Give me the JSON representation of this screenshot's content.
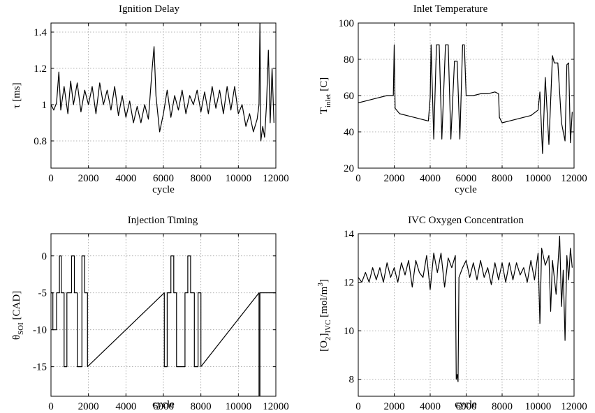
{
  "chart_data": [
    {
      "type": "line",
      "title": "Ignition Delay",
      "xlabel": "cycle",
      "ylabel": "τ [ms]",
      "xlim": [
        0,
        12000
      ],
      "ylim": [
        0.65,
        1.45
      ],
      "xticks": [
        0,
        2000,
        4000,
        6000,
        8000,
        10000,
        12000
      ],
      "yticks": [
        0.8,
        1,
        1.2,
        1.4
      ],
      "grid": true,
      "series": [
        {
          "color": "#000000",
          "x": [
            0,
            150,
            300,
            420,
            520,
            700,
            900,
            1050,
            1200,
            1400,
            1600,
            1800,
            2000,
            2200,
            2400,
            2600,
            2800,
            3000,
            3200,
            3400,
            3600,
            3800,
            4000,
            4200,
            4400,
            4600,
            4800,
            5000,
            5200,
            5400,
            5500,
            5600,
            5800,
            6000,
            6200,
            6400,
            6600,
            6800,
            7000,
            7200,
            7400,
            7600,
            7800,
            8000,
            8200,
            8400,
            8600,
            8800,
            9000,
            9200,
            9400,
            9600,
            9800,
            10000,
            10200,
            10400,
            10600,
            10800,
            11000,
            11100,
            11150,
            11200,
            11300,
            11400,
            11500,
            11600,
            11700,
            11800,
            11900
          ],
          "values": [
            1.0,
            0.97,
            1.01,
            1.18,
            0.97,
            1.1,
            0.95,
            1.13,
            1.0,
            1.12,
            0.96,
            1.08,
            1.0,
            1.1,
            0.95,
            1.12,
            1.0,
            1.08,
            0.97,
            1.1,
            0.94,
            1.05,
            0.93,
            1.02,
            0.9,
            0.99,
            0.9,
            1.0,
            0.92,
            1.2,
            1.32,
            1.05,
            0.85,
            0.95,
            1.08,
            0.93,
            1.05,
            0.97,
            1.08,
            0.95,
            1.05,
            1.0,
            1.08,
            0.96,
            1.07,
            0.95,
            1.1,
            0.98,
            1.08,
            0.95,
            1.1,
            0.97,
            1.1,
            0.95,
            1.0,
            0.88,
            0.95,
            0.85,
            0.92,
            1.0,
            1.45,
            0.8,
            0.88,
            0.82,
            1.0,
            1.3,
            0.9,
            1.2,
            0.9
          ]
        }
      ]
    },
    {
      "type": "line",
      "title": "Inlet Temperature",
      "xlabel": "cycle",
      "ylabel": "T_inlet [C]",
      "ylabel_main": "T",
      "ylabel_sub": "inlet",
      "ylabel_tail": " [C]",
      "xlim": [
        0,
        12000
      ],
      "ylim": [
        20,
        100
      ],
      "xticks": [
        0,
        2000,
        4000,
        6000,
        8000,
        10000,
        12000
      ],
      "yticks": [
        20,
        40,
        60,
        80,
        100
      ],
      "grid": true,
      "series": [
        {
          "color": "#000000",
          "x": [
            0,
            400,
            800,
            1200,
            1600,
            1950,
            2000,
            2050,
            2300,
            2700,
            3100,
            3500,
            3900,
            4000,
            4050,
            4200,
            4350,
            4500,
            4650,
            4850,
            5000,
            5150,
            5350,
            5500,
            5650,
            5800,
            5900,
            6000,
            6400,
            6800,
            7200,
            7600,
            7800,
            7850,
            8000,
            8400,
            8800,
            9200,
            9600,
            10000,
            10100,
            10250,
            10400,
            10600,
            10800,
            10900,
            11100,
            11300,
            11500,
            11600,
            11700,
            11800,
            11900
          ],
          "values": [
            56,
            57,
            58,
            59,
            60,
            60,
            88,
            53,
            50,
            49,
            48,
            47,
            46,
            59,
            88,
            36,
            88,
            88,
            36,
            88,
            88,
            36,
            79,
            79,
            36,
            88,
            88,
            60,
            60,
            61,
            61,
            62,
            61,
            48,
            45,
            46,
            47,
            48,
            49,
            52,
            62,
            28,
            70,
            33,
            82,
            78,
            78,
            45,
            35,
            77,
            78,
            34,
            51
          ]
        }
      ]
    },
    {
      "type": "line",
      "title": "Injection Timing",
      "xlabel": "cycle",
      "ylabel": "θ_SOI [CAD]",
      "ylabel_main": "θ",
      "ylabel_sub": "SOI",
      "ylabel_tail": " [CAD]",
      "xlim": [
        0,
        12000
      ],
      "ylim": [
        -19,
        3
      ],
      "xticks": [
        0,
        2000,
        4000,
        6000,
        8000,
        10000,
        12000
      ],
      "yticks": [
        -15,
        -10,
        -5,
        0
      ],
      "grid": true,
      "series": [
        {
          "color": "#000000",
          "x": [
            0,
            100,
            100,
            300,
            300,
            450,
            450,
            550,
            550,
            700,
            700,
            850,
            850,
            1100,
            1100,
            1250,
            1250,
            1400,
            1400,
            1650,
            1650,
            1800,
            1800,
            1950,
            1950,
            6050,
            6050,
            6200,
            6200,
            6400,
            6400,
            6550,
            6550,
            6700,
            6700,
            7150,
            7150,
            7300,
            7300,
            7450,
            7450,
            7650,
            7650,
            7850,
            7850,
            8000,
            8000,
            11100,
            11100,
            11150,
            11150,
            12000
          ],
          "values": [
            -5,
            -5,
            -10,
            -10,
            -5,
            -5,
            0,
            0,
            -5,
            -5,
            -15,
            -15,
            -5,
            -5,
            0,
            0,
            -5,
            -5,
            -15,
            -15,
            0,
            0,
            -5,
            -5,
            -15,
            -5,
            -15,
            -15,
            -5,
            -5,
            0,
            0,
            -5,
            -5,
            -15,
            -15,
            -5,
            -5,
            0,
            0,
            -5,
            -5,
            -15,
            -15,
            -5,
            -5,
            -15,
            -5,
            -19,
            -19,
            -5,
            -5
          ]
        }
      ]
    },
    {
      "type": "line",
      "title": "IVC Oxygen Concentration",
      "xlabel": "cycle",
      "ylabel": "[O2]IVC [mol/m3]",
      "ylabel_a": "[O",
      "ylabel_a_sub": "2",
      "ylabel_b": "]",
      "ylabel_b_sub": "IVC",
      "ylabel_c": " [mol/m",
      "ylabel_c_sup": "3",
      "ylabel_d": "]",
      "xlim": [
        0,
        12000
      ],
      "ylim": [
        7.3,
        14
      ],
      "xticks": [
        0,
        2000,
        4000,
        6000,
        8000,
        10000,
        12000
      ],
      "yticks": [
        8,
        10,
        12,
        14
      ],
      "grid": true,
      "series": [
        {
          "color": "#000000",
          "x": [
            0,
            200,
            400,
            600,
            800,
            1000,
            1200,
            1400,
            1600,
            1800,
            2000,
            2200,
            2400,
            2600,
            2800,
            3000,
            3200,
            3400,
            3600,
            3800,
            4000,
            4200,
            4400,
            4600,
            4800,
            5000,
            5200,
            5400,
            5450,
            5500,
            5550,
            5600,
            5800,
            6000,
            6200,
            6400,
            6600,
            6800,
            7000,
            7200,
            7400,
            7600,
            7800,
            8000,
            8200,
            8400,
            8600,
            8800,
            9000,
            9200,
            9400,
            9600,
            9800,
            10000,
            10100,
            10200,
            10400,
            10600,
            10700,
            10800,
            11000,
            11200,
            11300,
            11400,
            11500,
            11600,
            11700,
            11800,
            11900
          ],
          "values": [
            12.2,
            12.0,
            12.4,
            12.0,
            12.6,
            12.1,
            12.6,
            12.0,
            12.8,
            12.2,
            12.6,
            12.0,
            12.8,
            12.3,
            12.9,
            11.8,
            12.9,
            12.4,
            12.2,
            13.1,
            11.7,
            13.2,
            12.4,
            13.2,
            11.8,
            13.0,
            12.6,
            13.1,
            8.0,
            8.2,
            7.9,
            12.2,
            12.6,
            12.9,
            12.2,
            12.8,
            12.1,
            12.9,
            12.2,
            12.6,
            11.9,
            12.8,
            12.1,
            12.8,
            12.0,
            12.8,
            12.1,
            12.8,
            12.3,
            12.6,
            12.0,
            12.9,
            12.1,
            13.2,
            10.3,
            13.4,
            12.7,
            13.1,
            10.8,
            12.9,
            11.5,
            13.9,
            11.0,
            12.5,
            9.6,
            13.1,
            12.1,
            13.4,
            12.6
          ]
        }
      ]
    }
  ]
}
